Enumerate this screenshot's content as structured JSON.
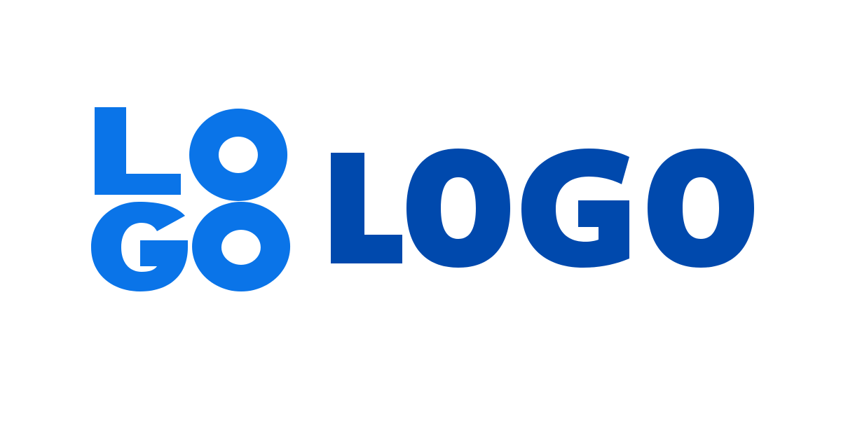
{
  "logo_mark": {
    "letters": [
      "L",
      "O",
      "G",
      "O"
    ],
    "color": "#0A74E8"
  },
  "wordmark": {
    "text": "LOGO",
    "letters": [
      "L",
      "O",
      "G",
      "O"
    ],
    "color": "#0049AD"
  },
  "background_color": "#FFFFFF"
}
